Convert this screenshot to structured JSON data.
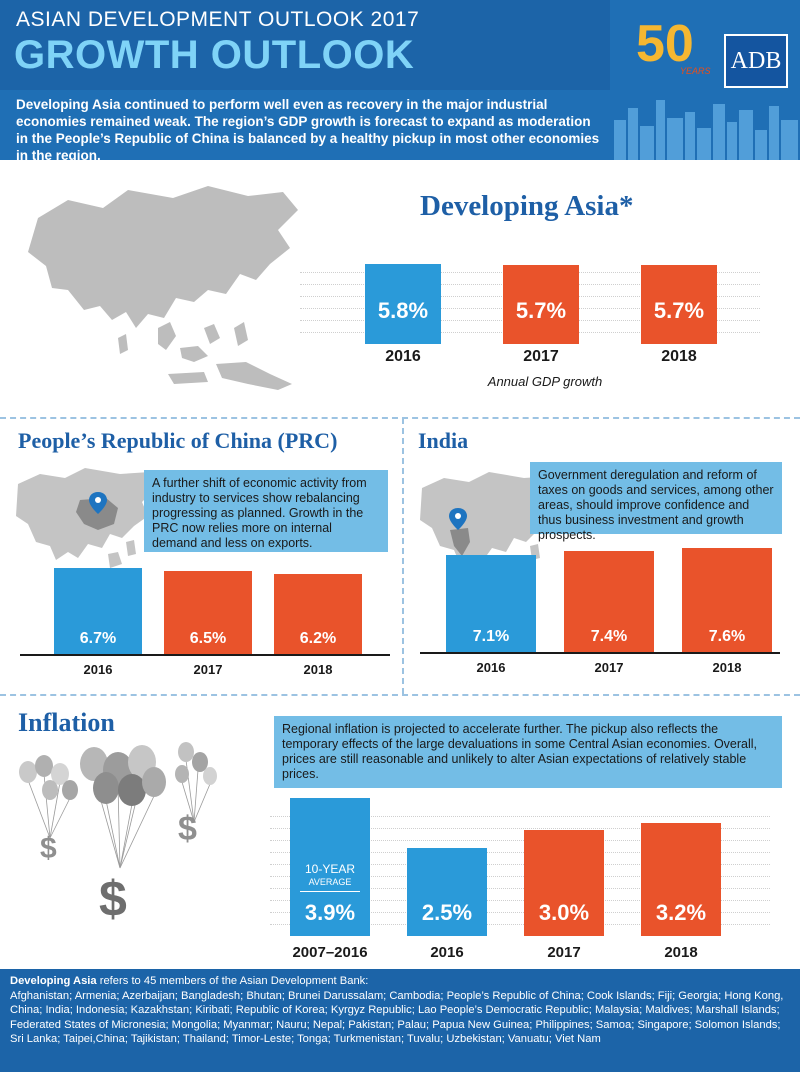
{
  "header": {
    "kicker": "ASIAN DEVELOPMENT OUTLOOK 2017",
    "headline": "GROWTH OUTLOOK",
    "intro": "Developing Asia continued to perform well even as recovery in the major industrial economies remained weak. The region’s GDP growth is forecast to expand as moderation in the People’s Republic of China is balanced by a healthy pickup in most other economies in the region.",
    "logo_number": "50",
    "logo_years": "YEARS",
    "adb_logo": "ADB"
  },
  "developing_asia": {
    "title": "Developing  Asia*",
    "caption": "Annual GDP growth",
    "bars": [
      {
        "year": "2016",
        "label": "5.8%",
        "value": 5.8,
        "color": "#2a9ad9"
      },
      {
        "year": "2017",
        "label": "5.7%",
        "value": 5.7,
        "color": "#e9532b"
      },
      {
        "year": "2018",
        "label": "5.7%",
        "value": 5.7,
        "color": "#e9532b"
      }
    ]
  },
  "prc": {
    "title": "People’s Republic of China (PRC)",
    "callout": "A further shift of economic activity from industry to services show rebalancing progressing as planned. Growth in the PRC now relies more on internal demand and less on exports.",
    "bars": [
      {
        "year": "2016",
        "label": "6.7%",
        "value": 6.7,
        "color": "#2a9ad9"
      },
      {
        "year": "2017",
        "label": "6.5%",
        "value": 6.5,
        "color": "#e9532b"
      },
      {
        "year": "2018",
        "label": "6.2%",
        "value": 6.2,
        "color": "#e9532b"
      }
    ]
  },
  "india": {
    "title": "India",
    "callout": "Government deregulation and reform of taxes on goods and services, among other areas, should improve confidence and thus business investment and growth prospects.",
    "bars": [
      {
        "year": "2016",
        "label": "7.1%",
        "value": 7.1,
        "color": "#2a9ad9"
      },
      {
        "year": "2017",
        "label": "7.4%",
        "value": 7.4,
        "color": "#e9532b"
      },
      {
        "year": "2018",
        "label": "7.6%",
        "value": 7.6,
        "color": "#e9532b"
      }
    ]
  },
  "inflation": {
    "title": "Inflation",
    "callout": "Regional inflation is projected to accelerate further. The pickup also reflects the temporary effects of the large devaluations in some Central Asian economies. Overall, prices are still reasonable and unlikely to alter Asian expectations of relatively stable prices.",
    "avg_label_1": "10-YEAR",
    "avg_label_2": "AVERAGE",
    "dollar_sign": "$",
    "bars": [
      {
        "year": "2007–2016",
        "label": "3.9%",
        "value": 3.9,
        "color": "#2a9ad9"
      },
      {
        "year": "2016",
        "label": "2.5%",
        "value": 2.5,
        "color": "#2a9ad9"
      },
      {
        "year": "2017",
        "label": "3.0%",
        "value": 3.0,
        "color": "#e9532b"
      },
      {
        "year": "2018",
        "label": "3.2%",
        "value": 3.2,
        "color": "#e9532b"
      }
    ]
  },
  "footer": {
    "lead": "Developing Asia",
    "lead_rest": " refers to 45 members of the Asian Development Bank:",
    "members": "Afghanistan; Armenia; Azerbaijan; Bangladesh; Bhutan; Brunei Darussalam; Cambodia; People’s Republic of China; Cook Islands; Fiji; Georgia; Hong Kong, China; India; Indonesia; Kazakhstan; Kiribati; Republic of Korea; Kyrgyz Republic; Lao People’s Democratic Republic; Malaysia; Maldives; Marshall Islands; Federated States of Micronesia; Mongolia; Myanmar; Nauru; Nepal; Pakistan; Palau; Papua New Guinea; Philippines; Samoa; Singapore; Solomon Islands; Sri Lanka; Taipei,China; Tajikistan; Thailand; Timor-Leste; Tonga; Turkmenistan; Tuvalu; Uzbekistan; Vanuatu; Viet Nam"
  },
  "colors": {
    "blue_bar": "#2a9ad9",
    "orange_bar": "#e9532b",
    "header_blue": "#1c64a8",
    "title_blue": "#1e5fa6",
    "callout_blue": "#73bde6"
  }
}
